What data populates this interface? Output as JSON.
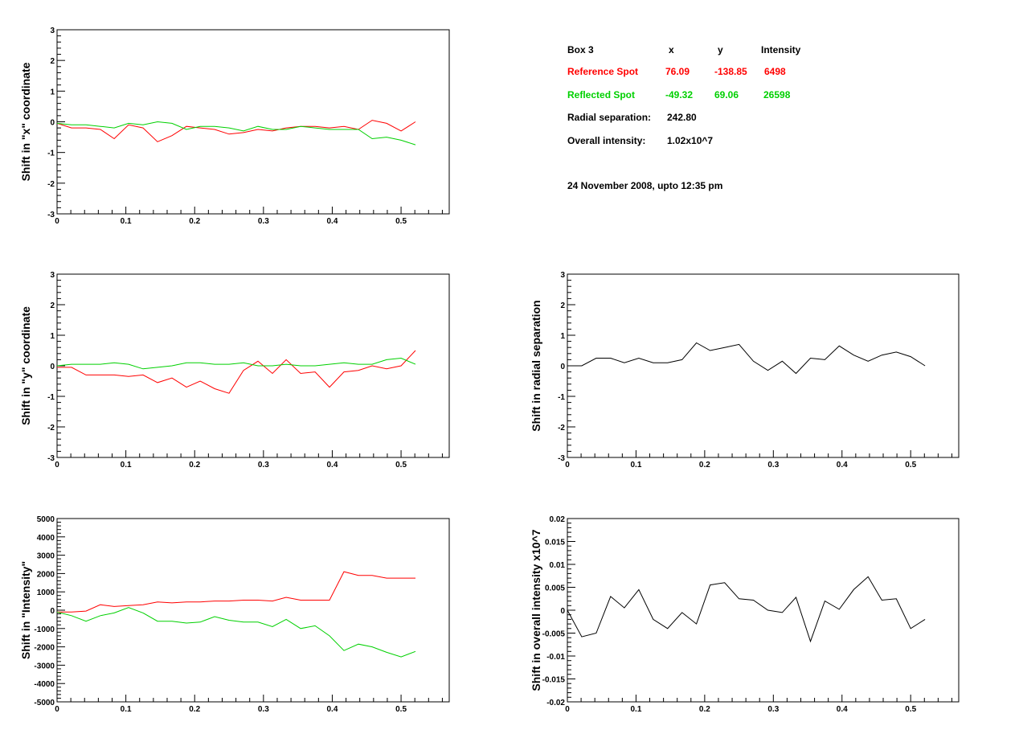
{
  "info_box": {
    "title": "Box 3",
    "col_x": "x",
    "col_y": "y",
    "col_intensity": "Intensity",
    "reference": {
      "label": "Reference Spot",
      "x": "76.09",
      "y": "-138.85",
      "intensity": "6498",
      "color": "#ff0000"
    },
    "reflected": {
      "label": "Reflected Spot",
      "x": "-49.32",
      "y": "69.06",
      "intensity": "26598",
      "color": "#00d000"
    },
    "radial_label": "Radial separation:",
    "radial_value": "242.80",
    "overall_label": "Overall intensity:",
    "overall_value": "1.02x10^7",
    "date_note": "24 November 2008, upto 12:35 pm"
  },
  "chart_data": [
    {
      "id": "x_shift",
      "type": "line",
      "ylabel": "Shift in \"x\" coordinate",
      "xlim": [
        0,
        0.57
      ],
      "ylim": [
        -3,
        3
      ],
      "xticks": [
        "0",
        "0.1",
        "0.2",
        "0.3",
        "0.4",
        "0.5"
      ],
      "yticks": [
        "-3",
        "-2",
        "-1",
        "0",
        "1",
        "2",
        "3"
      ],
      "x": [
        0,
        0.021,
        0.042,
        0.063,
        0.083,
        0.104,
        0.125,
        0.146,
        0.167,
        0.188,
        0.208,
        0.229,
        0.25,
        0.271,
        0.292,
        0.313,
        0.333,
        0.354,
        0.375,
        0.396,
        0.417,
        0.438,
        0.458,
        0.479,
        0.5,
        0.521
      ],
      "series": [
        {
          "color": "#ff0000",
          "values": [
            -0.05,
            -0.2,
            -0.2,
            -0.25,
            -0.55,
            -0.1,
            -0.2,
            -0.65,
            -0.45,
            -0.15,
            -0.2,
            -0.25,
            -0.4,
            -0.35,
            -0.25,
            -0.3,
            -0.2,
            -0.15,
            -0.15,
            -0.2,
            -0.15,
            -0.25,
            0.05,
            -0.05,
            -0.3,
            0.0
          ]
        },
        {
          "color": "#00d000",
          "values": [
            -0.05,
            -0.1,
            -0.1,
            -0.15,
            -0.2,
            -0.05,
            -0.1,
            0.0,
            -0.05,
            -0.25,
            -0.15,
            -0.15,
            -0.2,
            -0.3,
            -0.15,
            -0.25,
            -0.25,
            -0.15,
            -0.2,
            -0.25,
            -0.25,
            -0.25,
            -0.55,
            -0.5,
            -0.6,
            -0.75
          ]
        }
      ]
    },
    {
      "id": "y_shift",
      "type": "line",
      "ylabel": "Shift in \"y\" coordinate",
      "xlim": [
        0,
        0.57
      ],
      "ylim": [
        -3,
        3
      ],
      "xticks": [
        "0",
        "0.1",
        "0.2",
        "0.3",
        "0.4",
        "0.5"
      ],
      "yticks": [
        "-3",
        "-2",
        "-1",
        "0",
        "1",
        "2",
        "3"
      ],
      "x": [
        0,
        0.021,
        0.042,
        0.063,
        0.083,
        0.104,
        0.125,
        0.146,
        0.167,
        0.188,
        0.208,
        0.229,
        0.25,
        0.271,
        0.292,
        0.313,
        0.333,
        0.354,
        0.375,
        0.396,
        0.417,
        0.438,
        0.458,
        0.479,
        0.5,
        0.521
      ],
      "series": [
        {
          "color": "#ff0000",
          "values": [
            -0.05,
            -0.05,
            -0.3,
            -0.3,
            -0.3,
            -0.35,
            -0.3,
            -0.55,
            -0.4,
            -0.7,
            -0.5,
            -0.75,
            -0.9,
            -0.15,
            0.15,
            -0.25,
            0.2,
            -0.25,
            -0.2,
            -0.7,
            -0.2,
            -0.15,
            0.0,
            -0.1,
            0.0,
            0.5
          ]
        },
        {
          "color": "#00d000",
          "values": [
            0.0,
            0.05,
            0.05,
            0.05,
            0.1,
            0.05,
            -0.1,
            -0.05,
            0.0,
            0.1,
            0.1,
            0.05,
            0.05,
            0.1,
            0.0,
            0.0,
            0.05,
            0.0,
            0.0,
            0.05,
            0.1,
            0.05,
            0.05,
            0.2,
            0.25,
            0.05
          ]
        }
      ]
    },
    {
      "id": "intensity_shift",
      "type": "line",
      "ylabel": "Shift in \"Intensity\"",
      "xlim": [
        0,
        0.57
      ],
      "ylim": [
        -5000,
        5000
      ],
      "xticks": [
        "0",
        "0.1",
        "0.2",
        "0.3",
        "0.4",
        "0.5"
      ],
      "yticks": [
        "-5000",
        "-4000",
        "-3000",
        "-2000",
        "-1000",
        "0",
        "1000",
        "2000",
        "3000",
        "4000",
        "5000"
      ],
      "x": [
        0,
        0.021,
        0.042,
        0.063,
        0.083,
        0.104,
        0.125,
        0.146,
        0.167,
        0.188,
        0.208,
        0.229,
        0.25,
        0.271,
        0.292,
        0.313,
        0.333,
        0.354,
        0.375,
        0.396,
        0.417,
        0.438,
        0.458,
        0.479,
        0.5,
        0.521
      ],
      "series": [
        {
          "color": "#ff0000",
          "values": [
            -100,
            -100,
            -50,
            300,
            200,
            250,
            300,
            450,
            400,
            450,
            450,
            500,
            500,
            550,
            550,
            500,
            700,
            550,
            550,
            550,
            2100,
            1900,
            1900,
            1750,
            1750,
            1750
          ]
        },
        {
          "color": "#00d000",
          "values": [
            -100,
            -300,
            -600,
            -300,
            -150,
            150,
            -150,
            -600,
            -600,
            -700,
            -650,
            -350,
            -550,
            -650,
            -650,
            -900,
            -500,
            -1000,
            -850,
            -1400,
            -2200,
            -1850,
            -2000,
            -2300,
            -2550,
            -2250
          ]
        }
      ]
    },
    {
      "id": "radial_shift",
      "type": "line",
      "ylabel": "Shift in radial separation",
      "xlim": [
        0,
        0.57
      ],
      "ylim": [
        -3,
        3
      ],
      "xticks": [
        "0",
        "0.1",
        "0.2",
        "0.3",
        "0.4",
        "0.5"
      ],
      "yticks": [
        "-3",
        "-2",
        "-1",
        "0",
        "1",
        "2",
        "3"
      ],
      "x": [
        0,
        0.021,
        0.042,
        0.063,
        0.083,
        0.104,
        0.125,
        0.146,
        0.167,
        0.188,
        0.208,
        0.229,
        0.25,
        0.271,
        0.292,
        0.313,
        0.333,
        0.354,
        0.375,
        0.396,
        0.417,
        0.438,
        0.458,
        0.479,
        0.5,
        0.521
      ],
      "series": [
        {
          "color": "#000000",
          "values": [
            0.0,
            0.0,
            0.25,
            0.25,
            0.1,
            0.25,
            0.1,
            0.1,
            0.2,
            0.75,
            0.5,
            0.6,
            0.7,
            0.15,
            -0.15,
            0.15,
            -0.25,
            0.25,
            0.2,
            0.65,
            0.35,
            0.15,
            0.35,
            0.45,
            0.3,
            0.0
          ]
        }
      ]
    },
    {
      "id": "overall_intensity_shift",
      "type": "line",
      "ylabel": "Shift in overall intensity x10^7",
      "xlim": [
        0,
        0.57
      ],
      "ylim": [
        -0.02,
        0.02
      ],
      "xticks": [
        "0",
        "0.1",
        "0.2",
        "0.3",
        "0.4",
        "0.5"
      ],
      "yticks": [
        "-0.02",
        "-0.015",
        "-0.01",
        "-0.005",
        "0",
        "0.005",
        "0.01",
        "0.015",
        "0.02"
      ],
      "x": [
        0,
        0.021,
        0.042,
        0.063,
        0.083,
        0.104,
        0.125,
        0.146,
        0.167,
        0.188,
        0.208,
        0.229,
        0.25,
        0.271,
        0.292,
        0.313,
        0.333,
        0.354,
        0.375,
        0.396,
        0.417,
        0.438,
        0.458,
        0.479,
        0.5,
        0.521
      ],
      "series": [
        {
          "color": "#000000",
          "values": [
            0.0,
            -0.0058,
            -0.005,
            0.003,
            0.0005,
            0.0045,
            -0.002,
            -0.004,
            -0.0005,
            -0.003,
            0.0055,
            0.006,
            0.0025,
            0.0022,
            0.0,
            -0.0005,
            0.0028,
            -0.0068,
            0.002,
            0.0002,
            0.0045,
            0.0073,
            0.0022,
            0.0025,
            -0.004,
            -0.002
          ]
        }
      ]
    }
  ]
}
